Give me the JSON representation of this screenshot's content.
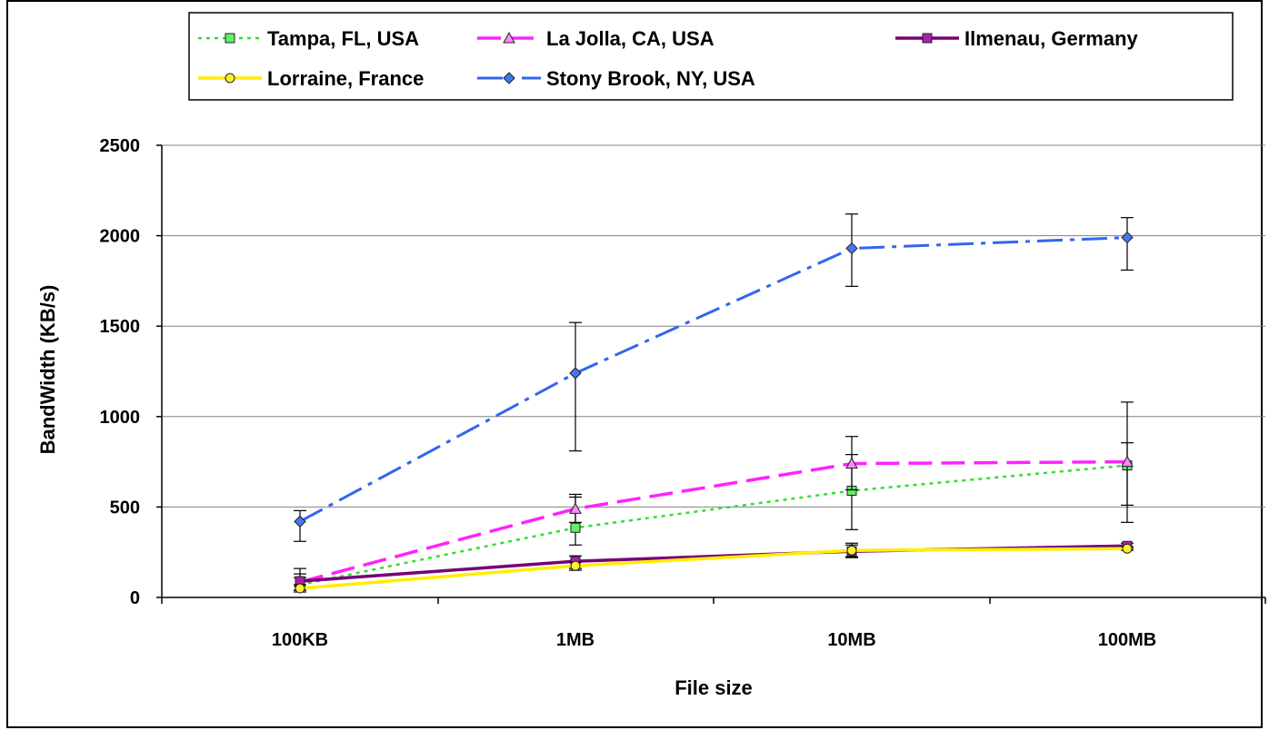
{
  "chart_data": {
    "type": "line",
    "title": "",
    "xlabel": "File size",
    "ylabel": "BandWidth (KB/s)",
    "categories": [
      "100KB",
      "1MB",
      "10MB",
      "100MB"
    ],
    "ylim": [
      0,
      2500
    ],
    "yticks": [
      0,
      500,
      1000,
      1500,
      2000,
      2500
    ],
    "grid": true,
    "legend_position": "top",
    "series": [
      {
        "name": "Tampa, FL, USA",
        "color": "#33dd33",
        "marker": "square",
        "marker_fill": "#66ee66",
        "line_style": "dotted",
        "values": [
          70,
          385,
          590,
          730
        ],
        "error_low": [
          30,
          290,
          375,
          510
        ],
        "error_high": [
          110,
          555,
          790,
          855
        ]
      },
      {
        "name": "La Jolla, CA, USA",
        "color": "#ff22ff",
        "marker": "triangle",
        "marker_fill": "#ff88ff",
        "line_style": "long-dash",
        "values": [
          85,
          490,
          740,
          750
        ],
        "error_low": [
          40,
          415,
          595,
          415
        ],
        "error_high": [
          130,
          570,
          890,
          1080
        ]
      },
      {
        "name": "Ilmenau, Germany",
        "color": "#770077",
        "marker": "square",
        "marker_fill": "#aa22aa",
        "line_style": "solid",
        "values": [
          90,
          200,
          255,
          285
        ],
        "error_low": [
          40,
          150,
          220,
          270
        ],
        "error_high": [
          160,
          230,
          290,
          300
        ]
      },
      {
        "name": "Lorraine, France",
        "color": "#ffee00",
        "marker": "circle",
        "marker_fill": "#ffee33",
        "line_style": "solid",
        "values": [
          50,
          175,
          260,
          270
        ],
        "error_low": [
          40,
          160,
          225,
          260
        ],
        "error_high": [
          70,
          195,
          300,
          280
        ]
      },
      {
        "name": "Stony Brook, NY, USA",
        "color": "#3366ee",
        "marker": "diamond",
        "marker_fill": "#4477ee",
        "line_style": "dash-dot",
        "values": [
          420,
          1240,
          1930,
          1990
        ],
        "error_low": [
          310,
          810,
          1720,
          1810
        ],
        "error_high": [
          480,
          1520,
          2120,
          2100
        ]
      }
    ]
  }
}
